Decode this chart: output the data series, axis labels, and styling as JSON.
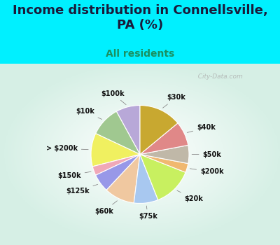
{
  "title": "Income distribution in Connellsville,\nPA (%)",
  "subtitle": "All residents",
  "labels": [
    "$100k",
    "$10k",
    "> $200k",
    "$150k",
    "$125k",
    "$60k",
    "$75k",
    "$20k",
    "$200k",
    "$50k",
    "$40k",
    "$30k"
  ],
  "values": [
    8,
    10,
    11,
    3,
    6,
    10,
    8,
    13,
    3,
    6,
    8,
    14
  ],
  "colors": [
    "#b8a8d8",
    "#a0c890",
    "#f0f060",
    "#f0a8b8",
    "#9898e8",
    "#f0c8a0",
    "#a8c8f0",
    "#c8f060",
    "#f0b870",
    "#c0b8a8",
    "#e08888",
    "#c8a830"
  ],
  "bg_color_top": "#00f0ff",
  "bg_color_chart": "#d8f0e8",
  "watermark": "  City-Data.com",
  "title_fontsize": 13,
  "subtitle_fontsize": 10,
  "label_fontsize": 7,
  "startangle": 90,
  "title_color": "#1a1a3a",
  "subtitle_color": "#1a9060"
}
